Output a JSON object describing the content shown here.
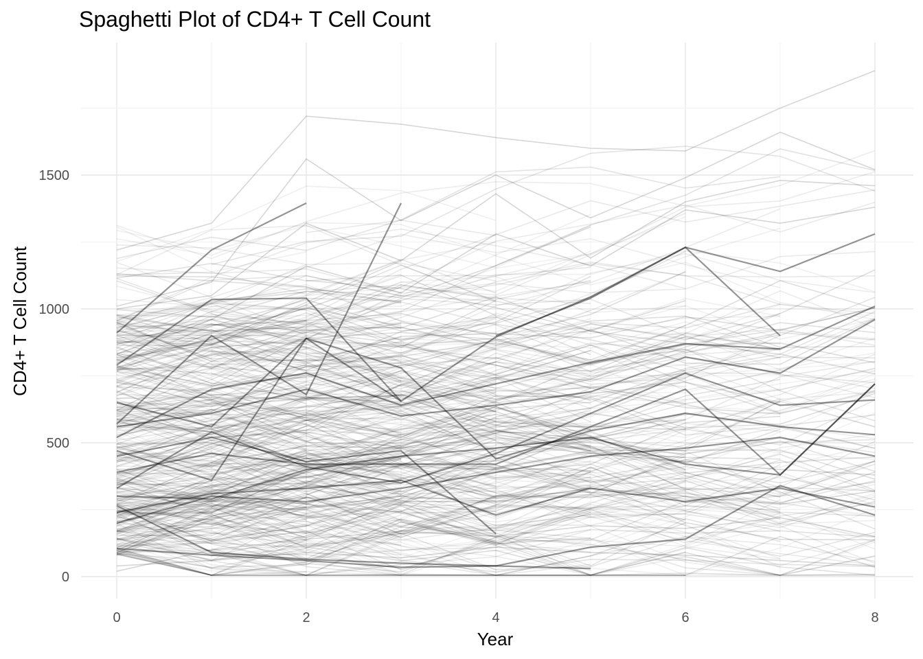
{
  "chart_data": {
    "type": "line",
    "title": "Spaghetti Plot of CD4+ T Cell Count",
    "xlabel": "Year",
    "ylabel": "CD4+ T Cell Count",
    "xlim": [
      -0.2,
      8.4
    ],
    "ylim": [
      -80,
      1990
    ],
    "x_ticks": [
      0,
      2,
      4,
      6,
      8
    ],
    "x_tick_labels": [
      "0",
      "2",
      "4",
      "6",
      "8"
    ],
    "y_ticks": [
      0,
      500,
      1000,
      1500
    ],
    "y_tick_labels": [
      "0",
      "500",
      "1000",
      "1500"
    ],
    "grid": true,
    "legend": "none",
    "line_color": "#000000",
    "line_opacity": 0.12,
    "note_background_subjects": "many additional faint subject trajectories between about 0 and 1900",
    "series": [
      {
        "x": [
          0,
          1,
          2,
          3
        ],
        "y": [
          790,
          1035,
          1040,
          655
        ]
      },
      {
        "x": [
          0,
          1,
          2,
          3,
          4,
          5,
          6,
          7
        ],
        "y": [
          650,
          560,
          890,
          655,
          895,
          1045,
          1230,
          900
        ]
      },
      {
        "x": [
          0,
          1,
          2,
          3,
          4,
          5
        ],
        "y": [
          265,
          90,
          65,
          50,
          40,
          30
        ]
      },
      {
        "x": [
          0,
          1,
          2,
          3,
          4,
          5,
          6,
          7,
          8
        ],
        "y": [
          105,
          80,
          60,
          35,
          40,
          110,
          140,
          340,
          230
        ]
      },
      {
        "x": [
          0,
          1,
          2,
          3
        ],
        "y": [
          570,
          900,
          680,
          1395
        ]
      },
      {
        "x": [
          0,
          1,
          2
        ],
        "y": [
          910,
          1220,
          1395
        ]
      },
      {
        "x": [
          0,
          1,
          2,
          3,
          4,
          5,
          6,
          7,
          8
        ],
        "y": [
          470,
          360,
          890,
          780,
          440,
          545,
          610,
          560,
          530
        ]
      },
      {
        "x": [
          0,
          1,
          2,
          3,
          4,
          5,
          6,
          7,
          8
        ],
        "y": [
          390,
          460,
          420,
          420,
          420,
          560,
          700,
          380,
          720
        ]
      },
      {
        "x": [
          4,
          5,
          6,
          7,
          8
        ],
        "y": [
          900,
          1040,
          1230,
          1140,
          1280
        ]
      },
      {
        "x": [
          0,
          1,
          2,
          3,
          4,
          5,
          6,
          7,
          8
        ],
        "y": [
          330,
          540,
          410,
          350,
          460,
          610,
          760,
          640,
          660
        ]
      },
      {
        "x": [
          0,
          1,
          2,
          3,
          4,
          5,
          6,
          7,
          8
        ],
        "y": [
          240,
          310,
          330,
          360,
          230,
          330,
          280,
          330,
          260
        ]
      },
      {
        "x": [
          0,
          1,
          2,
          3,
          4,
          5,
          6,
          7,
          8
        ],
        "y": [
          560,
          610,
          700,
          600,
          640,
          690,
          820,
          760,
          960
        ]
      },
      {
        "x": [
          0,
          1,
          2,
          3,
          4
        ],
        "y": [
          450,
          520,
          430,
          470,
          160
        ]
      },
      {
        "x": [
          0,
          1,
          2,
          3,
          4,
          5,
          6,
          7,
          8
        ],
        "y": [
          300,
          290,
          400,
          450,
          480,
          520,
          420,
          380,
          720
        ]
      },
      {
        "x": [
          0,
          1,
          2,
          3,
          4,
          5,
          6,
          7,
          8
        ],
        "y": [
          520,
          700,
          760,
          640,
          720,
          800,
          870,
          850,
          1010
        ]
      },
      {
        "x": [
          0,
          1,
          2,
          3,
          4,
          5,
          6,
          7,
          8
        ],
        "y": [
          200,
          300,
          280,
          330,
          390,
          450,
          480,
          520,
          450
        ]
      },
      {
        "x": [
          0,
          1,
          2,
          3,
          4,
          5,
          6,
          7,
          8
        ],
        "y": [
          140,
          220,
          260,
          300,
          280,
          330,
          300,
          270,
          320
        ]
      },
      {
        "x": [
          0,
          1,
          2,
          3,
          4,
          5,
          6,
          7,
          8
        ],
        "y": [
          620,
          520,
          540,
          480,
          500,
          460,
          430,
          400,
          380
        ]
      },
      {
        "x": [
          0,
          1,
          2,
          3,
          4,
          5,
          6,
          7,
          8
        ],
        "y": [
          1220,
          1320,
          1720,
          1690,
          1640,
          1600,
          1590,
          1750,
          1890
        ]
      },
      {
        "x": [
          0,
          1,
          2,
          3,
          4,
          5,
          6,
          7,
          8
        ],
        "y": [
          1010,
          1100,
          1560,
          1330,
          1500,
          1340,
          1490,
          1660,
          1520
        ]
      },
      {
        "x": [
          0,
          1,
          2,
          3,
          4,
          5,
          6,
          7,
          8
        ],
        "y": [
          1000,
          1050,
          1320,
          1180,
          1430,
          1190,
          1400,
          1480,
          1460
        ]
      },
      {
        "x": [
          0,
          1,
          2,
          3,
          4,
          5,
          6,
          7,
          8
        ],
        "y": [
          830,
          960,
          1160,
          1060,
          1280,
          1160,
          1370,
          1320,
          1380
        ]
      },
      {
        "x": [
          0,
          1,
          2,
          3,
          4,
          5,
          6,
          7,
          8
        ],
        "y": [
          40,
          60,
          90,
          70,
          110,
          90,
          80,
          60,
          40
        ]
      },
      {
        "x": [
          0,
          1,
          2,
          3,
          4,
          5,
          6,
          7,
          8
        ],
        "y": [
          20,
          100,
          140,
          170,
          150,
          190,
          180,
          220,
          150
        ]
      }
    ]
  }
}
